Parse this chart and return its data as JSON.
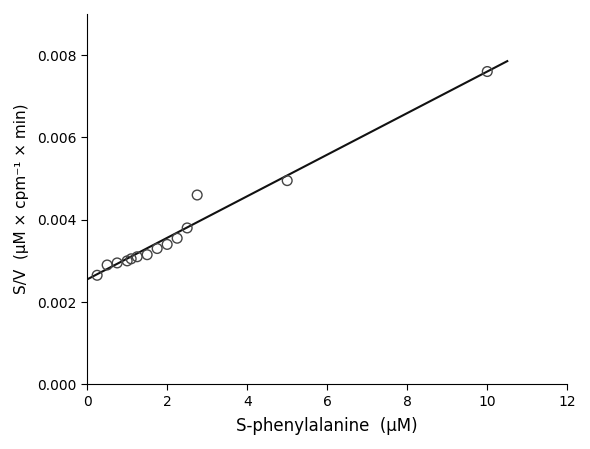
{
  "x_data": [
    0.25,
    0.5,
    0.75,
    1.0,
    1.1,
    1.25,
    1.5,
    1.75,
    2.0,
    2.25,
    2.5,
    2.75,
    5.0,
    10.0
  ],
  "y_data": [
    0.00265,
    0.0029,
    0.00295,
    0.003,
    0.00305,
    0.0031,
    0.00315,
    0.0033,
    0.0034,
    0.00355,
    0.0038,
    0.0046,
    0.00495,
    0.0076
  ],
  "line_slope": 0.000505,
  "line_intercept": 0.00255,
  "line_x_start": 0.0,
  "line_x_end": 10.5,
  "xlabel": "S-phenylalanine  (μM)",
  "ylabel": "S/V  (μM × cpm⁻¹ × min)",
  "xlim": [
    0,
    12
  ],
  "ylim": [
    0.0,
    0.009
  ],
  "xticks": [
    0,
    2,
    4,
    6,
    8,
    10,
    12
  ],
  "yticks": [
    0.0,
    0.002,
    0.004,
    0.006,
    0.008
  ],
  "marker_color": "none",
  "marker_edge_color": "#444444",
  "line_color": "#111111",
  "background_color": "#ffffff",
  "marker_size": 7,
  "line_width": 1.5
}
